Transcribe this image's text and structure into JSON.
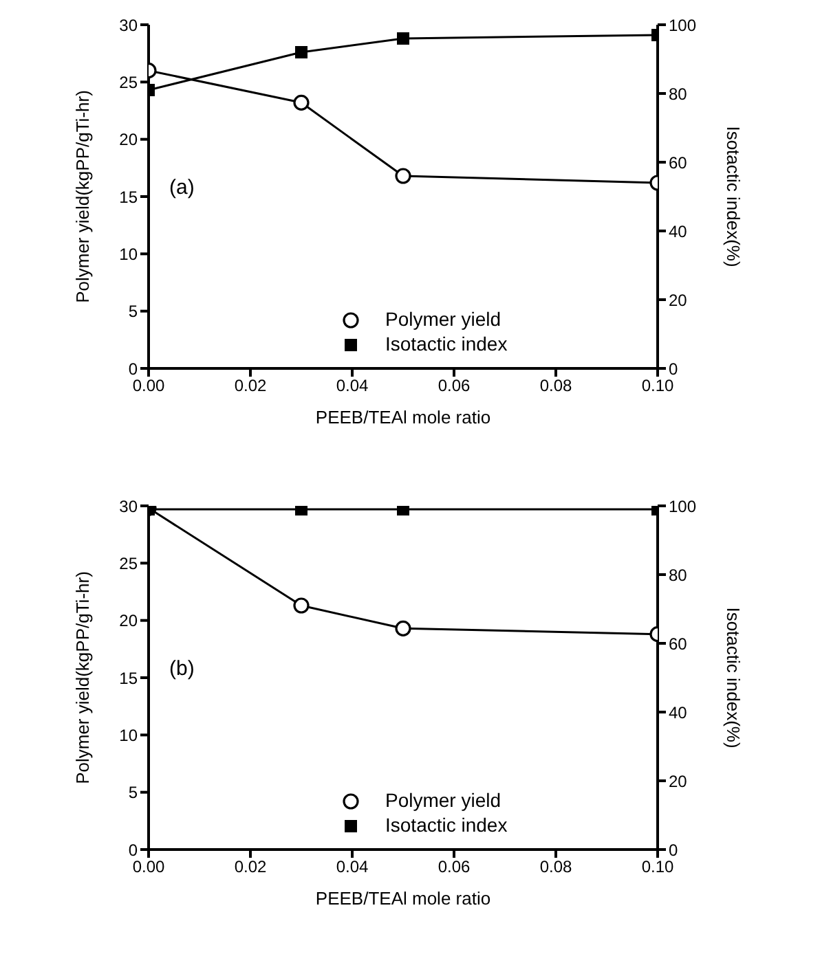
{
  "chart_data": [
    {
      "type": "line",
      "annotations": [
        "(a)"
      ],
      "xlabel": "PEEB/TEAl mole ratio",
      "ylabel": "Polymer yield(kgPP/gTi-hr)",
      "y2label": "Isotactic index(%)",
      "x": [
        0,
        0.03,
        0.05,
        0.1
      ],
      "series": [
        {
          "name": "Polymer yield",
          "color": "#000000",
          "marker": "circle",
          "values": [
            26,
            23.2,
            16.8,
            16.2
          ]
        },
        {
          "name": "Isotactic index",
          "color": "#000000",
          "marker": "square",
          "axis": "y2",
          "values": [
            81,
            92,
            96,
            97
          ]
        }
      ],
      "xlim": [
        0,
        0.1
      ],
      "xticks": [
        {
          "value": 0,
          "label": "0.00"
        },
        {
          "value": 0.02,
          "label": "0.02"
        },
        {
          "value": 0.04,
          "label": "0.04"
        },
        {
          "value": 0.06,
          "label": "0.06"
        },
        {
          "value": 0.08,
          "label": "0.08"
        },
        {
          "value": 0.1,
          "label": "0.10"
        }
      ],
      "ylim": [
        0,
        30
      ],
      "yticks": [
        0,
        5,
        10,
        15,
        20,
        25,
        30
      ],
      "y2lim": [
        0,
        100
      ],
      "y2ticks": [
        0,
        20,
        40,
        60,
        80,
        100
      ],
      "grid": false,
      "legend": "bottom",
      "line_style": "solid"
    },
    {
      "type": "line",
      "annotations": [
        "(b)"
      ],
      "xlabel": "PEEB/TEAl mole ratio",
      "ylabel": "Polymer yield(kgPP/gTi-hr)",
      "y2label": "Isotactic index(%)",
      "x": [
        0,
        0.03,
        0.05,
        0.1
      ],
      "series": [
        {
          "name": "Polymer yield",
          "color": "#000000",
          "marker": "circle",
          "values": [
            29.8,
            21.3,
            19.3,
            18.8
          ]
        },
        {
          "name": "Isotactic index",
          "color": "#000000",
          "marker": "square",
          "axis": "y2",
          "values": [
            99,
            99,
            99,
            99
          ]
        }
      ],
      "xlim": [
        0,
        0.1
      ],
      "xticks": [
        {
          "value": 0,
          "label": "0.00"
        },
        {
          "value": 0.02,
          "label": "0.02"
        },
        {
          "value": 0.04,
          "label": "0.04"
        },
        {
          "value": 0.06,
          "label": "0.06"
        },
        {
          "value": 0.08,
          "label": "0.08"
        },
        {
          "value": 0.1,
          "label": "0.10"
        }
      ],
      "ylim": [
        0,
        30
      ],
      "yticks": [
        0,
        5,
        10,
        15,
        20,
        25,
        30
      ],
      "y2lim": [
        0,
        100
      ],
      "y2ticks": [
        0,
        20,
        40,
        60,
        80,
        100
      ],
      "grid": false,
      "legend": "bottom",
      "line_style": "solid"
    }
  ]
}
